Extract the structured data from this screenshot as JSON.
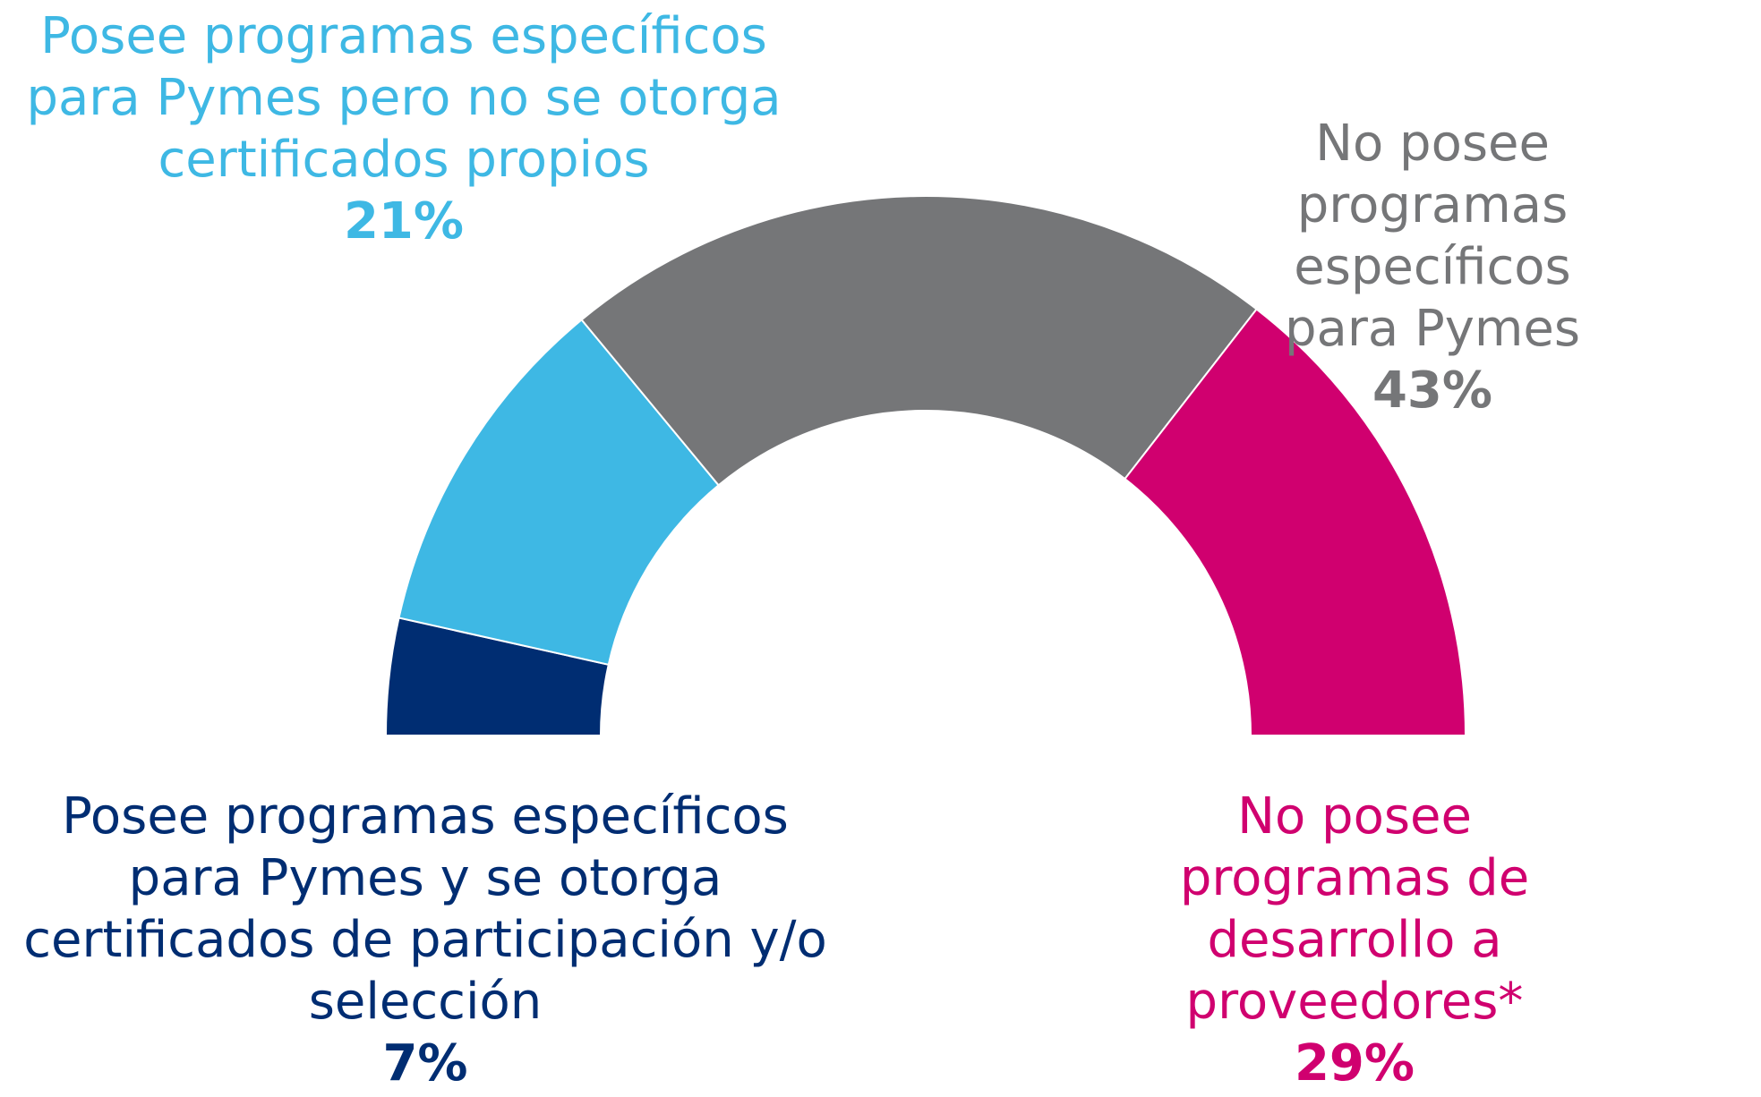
{
  "chart_data": {
    "type": "half-donut",
    "categories": [
      "Posee programas específicos\npara Pymes y se otorga\ncertificados de participación y/o\nselección",
      "Posee programas específicos\npara Pymes pero no se otorga\ncertificados propios",
      "No posee programas\nespecíficos para Pymes",
      "No posee programas de\ndesarrollo a proveedores*"
    ],
    "values": [
      7,
      21,
      43,
      29
    ],
    "value_labels": [
      "7%",
      "21%",
      "43%",
      "29%"
    ],
    "colors": [
      "#002d72",
      "#3eb8e4",
      "#757678",
      "#d0006f"
    ]
  }
}
